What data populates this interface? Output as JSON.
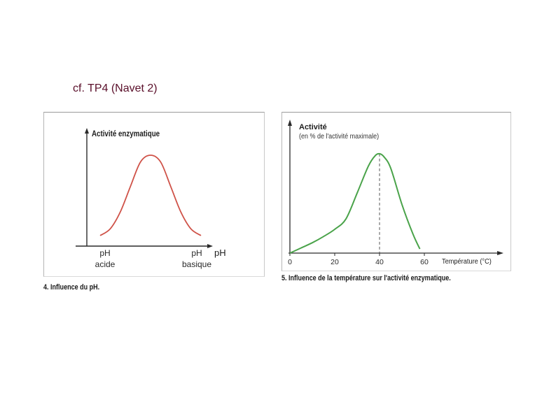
{
  "slide": {
    "title": "cf. TP4 (Navet 2)"
  },
  "chart_data": [
    {
      "type": "line",
      "ylabel": "Activité enzymatique",
      "xlabel": "pH",
      "x_tick_labels": [
        {
          "line1": "pH",
          "line2": "acide"
        },
        {
          "line1": "pH",
          "line2": "basique"
        }
      ],
      "x": [
        0,
        0.1,
        0.2,
        0.3,
        0.4,
        0.5,
        0.6,
        0.7,
        0.8,
        0.9,
        1.0
      ],
      "series": [
        {
          "values": [
            0.05,
            0.13,
            0.33,
            0.63,
            0.92,
            1.0,
            0.92,
            0.63,
            0.33,
            0.13,
            0.05
          ]
        }
      ],
      "color": "#cf5248",
      "caption": "4. Influence du pH."
    },
    {
      "type": "line",
      "ylabel": "Activité",
      "ylabel_sub": "(en % de l'activité maximale)",
      "xlabel": "Température (°C)",
      "x_ticks": [
        0,
        20,
        40,
        60
      ],
      "xlim": [
        0,
        95
      ],
      "ylim": [
        0,
        100
      ],
      "x": [
        0,
        5,
        10,
        15,
        20,
        25,
        30,
        35,
        38,
        40,
        42,
        45,
        50,
        55,
        58
      ],
      "series": [
        {
          "values": [
            0,
            5,
            10,
            16,
            23,
            33,
            58,
            84,
            94,
            96,
            93,
            82,
            47,
            18,
            4
          ]
        }
      ],
      "optimum_x": 40,
      "color": "#4aa34a",
      "caption": "5. Influence de la température sur l'activité enzymatique."
    }
  ]
}
